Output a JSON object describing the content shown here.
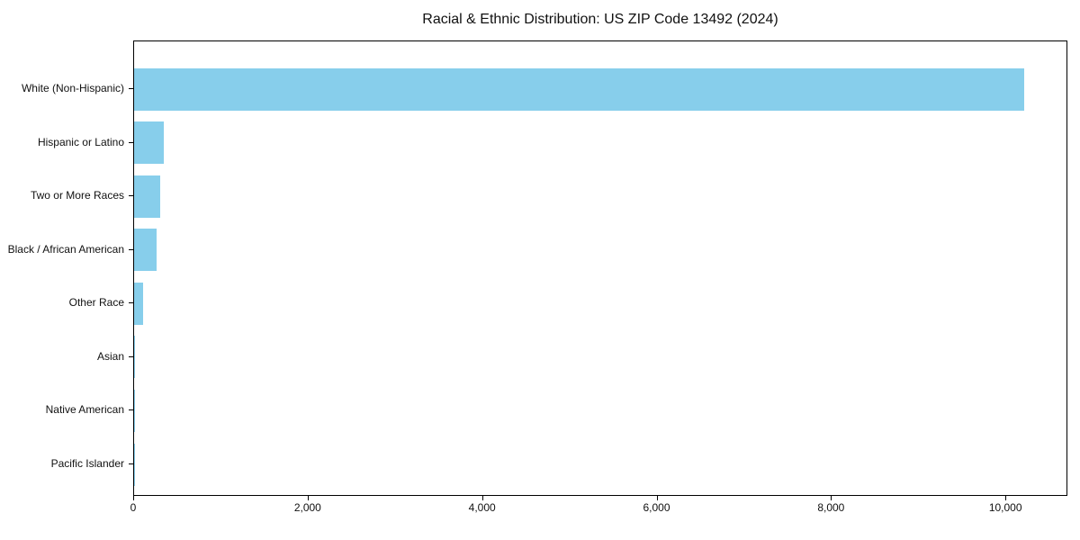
{
  "title": "Racial & Ethnic Distribution: US ZIP Code 13492 (2024)",
  "colors": {
    "bar": "#87CEEB",
    "axis": "#000000",
    "text": "#111111",
    "background": "#FFFFFF"
  },
  "chart_data": {
    "type": "bar",
    "orientation": "horizontal",
    "title": "Racial & Ethnic Distribution: US ZIP Code 13492 (2024)",
    "categories": [
      "White (Non-Hispanic)",
      "Hispanic or Latino",
      "Two or More Races",
      "Black / African American",
      "Other Race",
      "Asian",
      "Native American",
      "Pacific Islander"
    ],
    "values": [
      10200,
      340,
      300,
      260,
      105,
      12,
      3,
      1
    ],
    "xlabel": "",
    "ylabel": "",
    "xlim": [
      0,
      10710
    ],
    "x_ticks": [
      {
        "value": 0,
        "label": "0"
      },
      {
        "value": 2000,
        "label": "2,000"
      },
      {
        "value": 4000,
        "label": "4,000"
      },
      {
        "value": 6000,
        "label": "6,000"
      },
      {
        "value": 8000,
        "label": "8,000"
      },
      {
        "value": 10000,
        "label": "10,000"
      }
    ],
    "grid": false,
    "legend": null,
    "bar_color": "#87CEEB"
  }
}
